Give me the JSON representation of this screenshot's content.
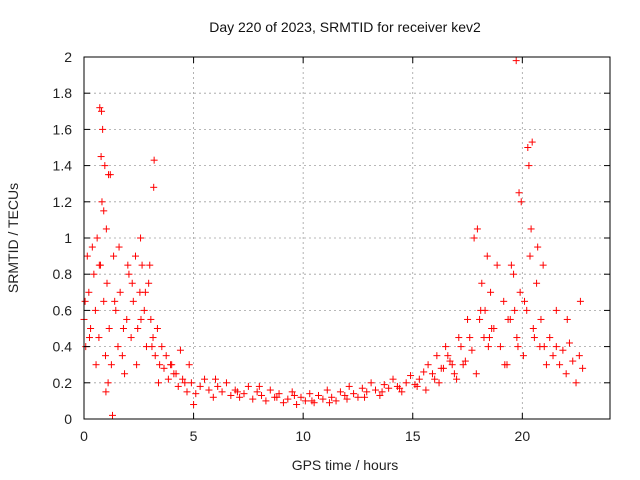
{
  "chart_data": {
    "type": "scatter",
    "title": "Day 220 of 2023, SRMTID for receiver kev2",
    "xlabel": "GPS time / hours",
    "ylabel": "SRMTID / TECUs",
    "xlim": [
      0,
      24
    ],
    "ylim": [
      0,
      2
    ],
    "x_ticks": [
      "0",
      "5",
      "10",
      "15",
      "20"
    ],
    "y_ticks": [
      "0",
      "0.2",
      "0.4",
      "0.6",
      "0.8",
      "1",
      "1.2",
      "1.4",
      "1.6",
      "1.8",
      "2"
    ],
    "grid": true,
    "marker": "+",
    "color": "#ff0000",
    "series": [
      {
        "name": "SRMTID",
        "x": [
          0.0,
          0.08,
          0.15,
          0.22,
          0.3,
          0.38,
          0.45,
          0.52,
          0.6,
          0.68,
          0.75,
          0.82,
          0.9,
          0.98,
          1.05,
          1.15,
          1.25,
          1.35,
          1.45,
          1.55,
          1.65,
          1.75,
          1.85,
          1.95,
          2.05,
          2.15,
          2.25,
          2.35,
          2.45,
          2.55,
          2.65,
          2.75,
          2.85,
          2.95,
          3.05,
          3.15,
          3.25,
          3.35,
          3.45,
          3.55,
          3.65,
          3.75,
          3.85,
          3.95,
          4.1,
          4.3,
          4.5,
          4.7,
          4.9,
          5.1,
          5.3,
          5.5,
          5.7,
          5.9,
          6.1,
          6.3,
          6.5,
          6.7,
          6.9,
          7.1,
          7.3,
          7.5,
          7.7,
          7.9,
          8.1,
          8.3,
          8.5,
          8.7,
          8.9,
          9.1,
          9.3,
          9.5,
          9.7,
          9.9,
          10.1,
          10.3,
          10.5,
          10.7,
          10.9,
          11.1,
          11.3,
          11.5,
          11.7,
          11.9,
          12.1,
          12.3,
          12.5,
          12.7,
          12.9,
          13.1,
          13.3,
          13.5,
          13.7,
          13.9,
          14.1,
          14.3,
          14.5,
          14.7,
          14.9,
          15.1,
          15.3,
          15.5,
          15.7,
          15.9,
          16.1,
          16.3,
          16.5,
          16.7,
          16.9,
          17.1,
          17.3,
          17.5,
          17.7,
          17.9,
          18.1,
          18.25,
          18.4,
          18.55,
          18.7,
          18.85,
          19.0,
          19.15,
          19.3,
          19.45,
          19.6,
          19.75,
          19.9,
          20.05,
          20.2,
          20.35,
          20.5,
          20.65,
          20.8,
          20.95,
          21.1,
          21.25,
          21.4,
          21.55,
          21.7,
          21.85,
          22.0,
          22.15,
          22.3,
          22.45,
          22.6,
          22.75,
          0.05,
          0.25,
          0.55,
          0.7,
          0.8,
          0.95,
          1.1,
          1.2,
          1.4,
          1.6,
          1.8,
          2.0,
          2.2,
          2.4,
          2.6,
          2.8,
          3.0,
          3.1,
          3.2,
          3.4,
          0.9,
          1.0,
          1.3,
          17.8,
          17.95,
          18.05,
          18.15,
          18.3,
          18.45,
          18.6,
          19.2,
          19.35,
          19.5,
          19.65,
          19.8,
          19.95,
          20.1,
          20.25,
          20.4,
          20.55,
          20.7,
          20.85,
          21.0,
          16.2,
          16.4,
          16.6,
          16.8,
          17.0,
          17.2,
          17.4,
          17.6,
          4.0,
          4.2,
          4.4,
          4.6,
          4.8,
          5.0,
          6.0,
          7.0,
          8.0,
          8.8,
          9.6,
          10.4,
          11.2,
          12.0,
          12.8,
          13.6,
          14.4,
          15.2,
          15.6,
          16.0,
          0.72,
          0.85,
          0.78,
          1.02,
          1.12,
          2.58,
          3.18,
          19.72,
          20.45,
          21.55,
          22.05,
          22.65,
          19.85,
          20.3,
          18.5
        ],
        "y": [
          0.55,
          0.4,
          0.9,
          0.7,
          0.5,
          0.95,
          0.8,
          0.6,
          1.0,
          0.45,
          0.85,
          1.2,
          0.65,
          0.35,
          0.75,
          0.5,
          0.3,
          0.9,
          0.6,
          0.4,
          0.7,
          0.35,
          0.25,
          0.55,
          0.8,
          0.45,
          0.65,
          0.9,
          0.5,
          0.7,
          0.85,
          0.6,
          0.4,
          0.75,
          0.55,
          0.45,
          0.35,
          0.5,
          0.3,
          0.4,
          0.28,
          0.35,
          0.22,
          0.3,
          0.25,
          0.18,
          0.22,
          0.15,
          0.2,
          0.14,
          0.18,
          0.22,
          0.16,
          0.12,
          0.18,
          0.15,
          0.2,
          0.13,
          0.16,
          0.12,
          0.14,
          0.18,
          0.11,
          0.15,
          0.13,
          0.1,
          0.16,
          0.12,
          0.14,
          0.09,
          0.11,
          0.15,
          0.08,
          0.12,
          0.1,
          0.14,
          0.09,
          0.13,
          0.11,
          0.16,
          0.12,
          0.1,
          0.15,
          0.13,
          0.18,
          0.14,
          0.12,
          0.17,
          0.15,
          0.2,
          0.16,
          0.13,
          0.19,
          0.17,
          0.22,
          0.18,
          0.15,
          0.2,
          0.24,
          0.19,
          0.22,
          0.26,
          0.3,
          0.25,
          0.35,
          0.28,
          0.4,
          0.32,
          0.25,
          0.45,
          0.3,
          0.55,
          0.38,
          0.25,
          0.6,
          0.45,
          0.9,
          0.7,
          0.5,
          0.85,
          0.4,
          0.65,
          0.3,
          0.55,
          0.8,
          0.45,
          0.7,
          0.35,
          0.6,
          0.9,
          0.5,
          0.75,
          0.4,
          0.85,
          0.3,
          0.45,
          0.35,
          0.4,
          0.3,
          0.38,
          0.25,
          0.42,
          0.32,
          0.2,
          0.35,
          0.28,
          0.65,
          0.45,
          0.3,
          0.85,
          1.7,
          1.4,
          0.2,
          1.35,
          0.65,
          0.95,
          0.5,
          0.85,
          0.75,
          0.3,
          0.55,
          0.7,
          0.85,
          0.4,
          1.43,
          0.2,
          1.15,
          0.15,
          0.02,
          1.0,
          1.05,
          0.55,
          0.75,
          0.6,
          0.4,
          0.5,
          0.3,
          0.55,
          0.85,
          0.6,
          0.4,
          1.2,
          0.65,
          1.5,
          1.05,
          0.45,
          0.95,
          0.55,
          0.4,
          0.2,
          0.28,
          0.35,
          0.3,
          0.22,
          0.4,
          0.32,
          0.45,
          0.3,
          0.25,
          0.38,
          0.2,
          0.3,
          0.08,
          0.22,
          0.15,
          0.18,
          0.12,
          0.13,
          0.1,
          0.09,
          0.11,
          0.12,
          0.15,
          0.17,
          0.18,
          0.16,
          0.22,
          1.72,
          1.6,
          1.45,
          1.05,
          1.35,
          1.0,
          1.28,
          1.98,
          1.53,
          0.6,
          0.55,
          0.65,
          1.25,
          1.4,
          0.45
        ]
      }
    ]
  }
}
